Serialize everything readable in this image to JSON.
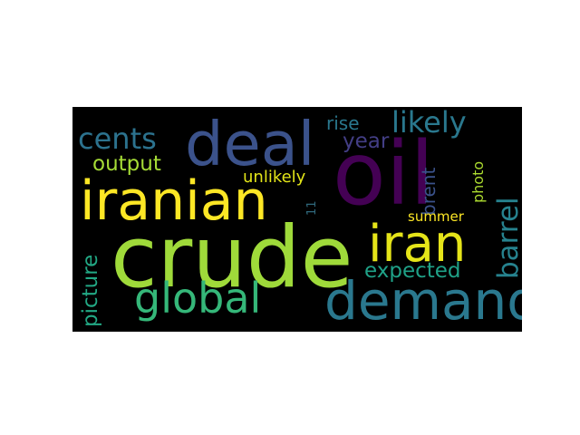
{
  "words": [
    {
      "text": "oil",
      "weight": 1.0,
      "color": "#440154",
      "rotated": false
    },
    {
      "text": "crude",
      "weight": 0.98,
      "color": "#9fda3a",
      "rotated": false
    },
    {
      "text": "deal",
      "weight": 0.7,
      "color": "#3b528b",
      "rotated": false
    },
    {
      "text": "demand",
      "weight": 0.6,
      "color": "#2a788e",
      "rotated": false
    },
    {
      "text": "iranian",
      "weight": 0.62,
      "color": "#fde725",
      "rotated": false
    },
    {
      "text": "iran",
      "weight": 0.58,
      "color": "#e5e419",
      "rotated": false
    },
    {
      "text": "global",
      "weight": 0.48,
      "color": "#35b779",
      "rotated": false
    },
    {
      "text": "cents",
      "weight": 0.33,
      "color": "#2c728e",
      "rotated": false
    },
    {
      "text": "likely",
      "weight": 0.33,
      "color": "#2a788e",
      "rotated": false
    },
    {
      "text": "barrel",
      "weight": 0.32,
      "color": "#26828e",
      "rotated": true
    },
    {
      "text": "expected",
      "weight": 0.24,
      "color": "#1fa187",
      "rotated": false
    },
    {
      "text": "output",
      "weight": 0.24,
      "color": "#a5db36",
      "rotated": false
    },
    {
      "text": "picture",
      "weight": 0.24,
      "color": "#22a884",
      "rotated": true
    },
    {
      "text": "year",
      "weight": 0.24,
      "color": "#433e85",
      "rotated": false
    },
    {
      "text": "rise",
      "weight": 0.21,
      "color": "#2a788e",
      "rotated": false
    },
    {
      "text": "brent",
      "weight": 0.21,
      "color": "#3b528b",
      "rotated": true
    },
    {
      "text": "unlikely",
      "weight": 0.19,
      "color": "#e2e418",
      "rotated": false
    },
    {
      "text": "photo",
      "weight": 0.17,
      "color": "#addc30",
      "rotated": true
    },
    {
      "text": "summer",
      "weight": 0.16,
      "color": "#fde725",
      "rotated": false
    },
    {
      "text": "11",
      "weight": 0.14,
      "color": "#30697d",
      "rotated": true
    }
  ]
}
